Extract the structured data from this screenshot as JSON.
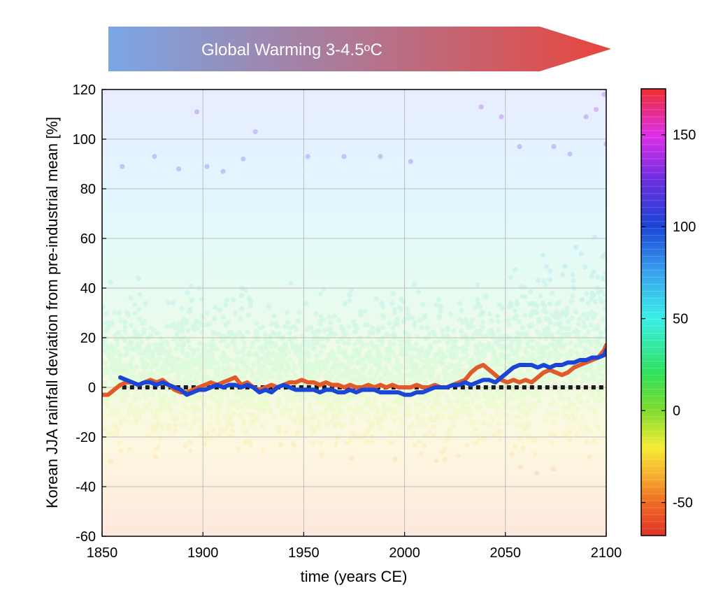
{
  "banner": {
    "text_main": "Global Warming 3-4.5",
    "text_sup": "o",
    "text_end": "C",
    "color_start": "#7aa7e6",
    "color_end": "#e8453c"
  },
  "chart_data": {
    "type": "scatter",
    "xlabel": "time (years CE)",
    "ylabel": "Korean JJA rainfall deviation from pre-industrial mean [%]",
    "xlim": [
      1850,
      2100
    ],
    "ylim": [
      -60,
      120
    ],
    "x_ticks": [
      "1850",
      "1900",
      "1950",
      "2000",
      "2050",
      "2100"
    ],
    "y_ticks": [
      "-60",
      "-40",
      "-20",
      "0",
      "20",
      "40",
      "60",
      "80",
      "100",
      "120"
    ],
    "grid": true,
    "reference_line": {
      "y": 0,
      "style": "dotted",
      "color": "#1a1a1a"
    },
    "scatter_note_points": [
      {
        "x": 1897,
        "y": 111
      },
      {
        "x": 1926,
        "y": 103
      },
      {
        "x": 2038,
        "y": 113
      },
      {
        "x": 2048,
        "y": 109
      },
      {
        "x": 2099,
        "y": 118
      },
      {
        "x": 2100,
        "y": 98
      },
      {
        "x": 2095,
        "y": 112
      },
      {
        "x": 2090,
        "y": 109
      },
      {
        "x": 1876,
        "y": 93
      },
      {
        "x": 1952,
        "y": 93
      },
      {
        "x": 1970,
        "y": 93
      },
      {
        "x": 1988,
        "y": 93
      },
      {
        "x": 1860,
        "y": 89
      },
      {
        "x": 1888,
        "y": 88
      },
      {
        "x": 1902,
        "y": 89
      },
      {
        "x": 1910,
        "y": 87
      },
      {
        "x": 1920,
        "y": 92
      },
      {
        "x": 2003,
        "y": 91
      },
      {
        "x": 2057,
        "y": 97
      },
      {
        "x": 2074,
        "y": 97
      },
      {
        "x": 2082,
        "y": 94
      }
    ],
    "series": [
      {
        "color": "#e05a2b",
        "x": [
          1850,
          1853,
          1856,
          1859,
          1862,
          1865,
          1868,
          1871,
          1874,
          1877,
          1880,
          1883,
          1886,
          1889,
          1892,
          1895,
          1898,
          1901,
          1904,
          1907,
          1910,
          1913,
          1916,
          1919,
          1922,
          1925,
          1928,
          1931,
          1934,
          1937,
          1940,
          1943,
          1946,
          1949,
          1952,
          1955,
          1958,
          1961,
          1964,
          1967,
          1970,
          1973,
          1976,
          1979,
          1982,
          1985,
          1988,
          1991,
          1994,
          1997,
          2000,
          2003,
          2006,
          2009,
          2012,
          2015,
          2018,
          2021,
          2024,
          2027,
          2030,
          2033,
          2036,
          2039,
          2042,
          2045,
          2048,
          2051,
          2054,
          2057,
          2060,
          2063,
          2066,
          2069,
          2072,
          2075,
          2078,
          2081,
          2084,
          2087,
          2090,
          2093,
          2096,
          2099,
          2100
        ],
        "y": [
          -3,
          -3,
          -1,
          1,
          2,
          2,
          1,
          2,
          3,
          2,
          3,
          1,
          -1,
          -2,
          -2,
          -1,
          0,
          1,
          2,
          1,
          2,
          3,
          4,
          1,
          2,
          0,
          -1,
          0,
          1,
          0,
          1,
          2,
          2,
          3,
          2,
          2,
          1,
          2,
          1,
          1,
          0,
          1,
          0,
          0,
          1,
          0,
          1,
          0,
          1,
          0,
          0,
          0,
          1,
          0,
          0,
          1,
          0,
          0,
          1,
          2,
          3,
          6,
          8,
          9,
          7,
          5,
          3,
          2,
          3,
          2,
          3,
          2,
          4,
          6,
          7,
          6,
          5,
          6,
          8,
          9,
          10,
          11,
          12,
          15,
          17
        ]
      },
      {
        "color": "#1a45d6",
        "x": [
          1859,
          1862,
          1865,
          1868,
          1871,
          1874,
          1877,
          1880,
          1883,
          1886,
          1889,
          1892,
          1895,
          1898,
          1901,
          1904,
          1907,
          1910,
          1913,
          1916,
          1919,
          1922,
          1925,
          1928,
          1931,
          1934,
          1937,
          1940,
          1943,
          1946,
          1949,
          1952,
          1955,
          1958,
          1961,
          1964,
          1967,
          1970,
          1973,
          1976,
          1979,
          1982,
          1985,
          1988,
          1991,
          1994,
          1997,
          2000,
          2003,
          2006,
          2009,
          2012,
          2015,
          2018,
          2021,
          2024,
          2027,
          2030,
          2033,
          2036,
          2039,
          2042,
          2045,
          2048,
          2051,
          2054,
          2057,
          2060,
          2063,
          2066,
          2069,
          2072,
          2075,
          2078,
          2081,
          2084,
          2087,
          2090,
          2093,
          2096,
          2099,
          2100
        ],
        "y": [
          4,
          3,
          2,
          1,
          2,
          2,
          1,
          2,
          1,
          0,
          -1,
          -3,
          -2,
          -1,
          -1,
          0,
          1,
          0,
          1,
          1,
          0,
          1,
          0,
          -2,
          -1,
          -2,
          0,
          1,
          0,
          -1,
          -1,
          -1,
          -1,
          -2,
          -1,
          -1,
          -2,
          -2,
          -1,
          -2,
          -1,
          -1,
          -1,
          -2,
          -2,
          -2,
          -2,
          -3,
          -3,
          -2,
          -2,
          -1,
          0,
          0,
          0,
          1,
          1,
          2,
          1,
          2,
          3,
          3,
          2,
          4,
          6,
          8,
          9,
          9,
          9,
          8,
          9,
          8,
          9,
          9,
          10,
          10,
          11,
          11,
          12,
          12,
          13,
          15
        ]
      }
    ]
  },
  "colorbar": {
    "ticks": [
      "-50",
      "0",
      "50",
      "100",
      "150"
    ],
    "range": [
      -68,
      175
    ],
    "stops": [
      {
        "v": -68,
        "color": "#e0322a"
      },
      {
        "v": -50,
        "color": "#ef6b22"
      },
      {
        "v": -35,
        "color": "#f7b02e"
      },
      {
        "v": -20,
        "color": "#f7ec34"
      },
      {
        "v": 0,
        "color": "#7fdc2e"
      },
      {
        "v": 20,
        "color": "#2fe05a"
      },
      {
        "v": 50,
        "color": "#39f0e8"
      },
      {
        "v": 75,
        "color": "#39a2ee"
      },
      {
        "v": 100,
        "color": "#1a45d6"
      },
      {
        "v": 125,
        "color": "#6a2ee0"
      },
      {
        "v": 150,
        "color": "#e02ee8"
      },
      {
        "v": 175,
        "color": "#ee2e2e"
      }
    ]
  }
}
